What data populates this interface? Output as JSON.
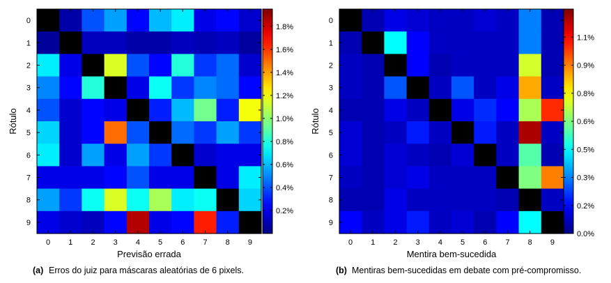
{
  "chart_data": [
    {
      "type": "heatmap",
      "panel_label": "(a)",
      "caption": "Erros do juiz para máscaras aleatórias de 6 pixels.",
      "xlabel": "Previsão errada",
      "ylabel": "Rótulo",
      "x_ticks": [
        "0",
        "1",
        "2",
        "3",
        "4",
        "5",
        "6",
        "7",
        "8",
        "9"
      ],
      "y_ticks": [
        "0",
        "1",
        "2",
        "3",
        "4",
        "5",
        "6",
        "7",
        "8",
        "9"
      ],
      "colorbar": {
        "min": 0.0,
        "max": 1.95,
        "unit": "%",
        "ticks": [
          0.2,
          0.4,
          0.6,
          0.8,
          1.0,
          1.2,
          1.4,
          1.6,
          1.8
        ],
        "tick_labels": [
          "0.2%",
          "0.4%",
          "0.6%",
          "0.8%",
          "1.0%",
          "1.2%",
          "1.4%",
          "1.6%",
          "1.8%"
        ]
      },
      "diagonal_masked": true,
      "values": [
        [
          0.0,
          0.08,
          0.4,
          0.55,
          0.25,
          0.6,
          0.7,
          0.2,
          0.25,
          0.15
        ],
        [
          0.05,
          0.0,
          0.12,
          0.12,
          0.08,
          0.08,
          0.12,
          0.1,
          0.12,
          0.06
        ],
        [
          0.7,
          0.2,
          0.0,
          1.15,
          0.4,
          0.25,
          0.8,
          0.35,
          0.45,
          0.15
        ],
        [
          0.5,
          0.25,
          0.8,
          0.0,
          0.2,
          0.75,
          0.35,
          0.5,
          0.45,
          0.25
        ],
        [
          0.4,
          0.15,
          0.25,
          0.2,
          0.0,
          0.3,
          0.6,
          0.95,
          0.3,
          1.2
        ],
        [
          0.65,
          0.15,
          0.25,
          1.5,
          0.4,
          0.0,
          0.45,
          0.35,
          0.55,
          0.35
        ],
        [
          0.7,
          0.15,
          0.55,
          0.2,
          0.55,
          0.35,
          0.0,
          0.15,
          0.2,
          0.2
        ],
        [
          0.2,
          0.2,
          0.2,
          0.25,
          0.4,
          0.2,
          0.2,
          0.0,
          0.2,
          0.7
        ],
        [
          0.55,
          0.35,
          0.75,
          1.15,
          0.75,
          1.05,
          0.7,
          0.75,
          0.0,
          0.65
        ],
        [
          0.2,
          0.15,
          0.12,
          0.25,
          1.85,
          0.2,
          0.25,
          1.65,
          0.3,
          0.0
        ]
      ]
    },
    {
      "type": "heatmap",
      "panel_label": "(b)",
      "caption": "Mentiras bem-sucedidas em debate com pré-compromisso.",
      "xlabel": "Mentira bem-sucedida",
      "ylabel": "Rótulo",
      "x_ticks": [
        "0",
        "1",
        "2",
        "3",
        "4",
        "5",
        "6",
        "7",
        "8",
        "9"
      ],
      "y_ticks": [
        "0",
        "1",
        "2",
        "3",
        "4",
        "5",
        "6",
        "7",
        "8",
        "9"
      ],
      "colorbar": {
        "min": 0.0,
        "max": 1.2,
        "unit": "%",
        "ticks": [
          0.0,
          0.15,
          0.3,
          0.45,
          0.6,
          0.75,
          0.9,
          1.05
        ],
        "tick_labels": [
          "0.0%",
          "0.2%",
          "0.3%",
          "0.5%",
          "0.6%",
          "0.8%",
          "0.9%",
          "1.1%"
        ]
      },
      "diagonal_masked": true,
      "values": [
        [
          0.0,
          0.06,
          0.12,
          0.1,
          0.08,
          0.08,
          0.1,
          0.08,
          0.3,
          0.06
        ],
        [
          0.06,
          0.0,
          0.45,
          0.15,
          0.08,
          0.08,
          0.08,
          0.08,
          0.3,
          0.06
        ],
        [
          0.08,
          0.06,
          0.0,
          0.15,
          0.06,
          0.08,
          0.08,
          0.08,
          0.7,
          0.06
        ],
        [
          0.08,
          0.06,
          0.25,
          0.0,
          0.08,
          0.25,
          0.08,
          0.12,
          0.85,
          0.08
        ],
        [
          0.06,
          0.06,
          0.12,
          0.08,
          0.0,
          0.12,
          0.2,
          0.15,
          0.65,
          1.0
        ],
        [
          0.1,
          0.06,
          0.08,
          0.18,
          0.08,
          0.0,
          0.18,
          0.08,
          1.15,
          0.08
        ],
        [
          0.1,
          0.06,
          0.1,
          0.08,
          0.06,
          0.1,
          0.0,
          0.08,
          0.55,
          0.06
        ],
        [
          0.08,
          0.06,
          0.1,
          0.12,
          0.08,
          0.08,
          0.08,
          0.0,
          0.6,
          0.9
        ],
        [
          0.06,
          0.06,
          0.12,
          0.08,
          0.08,
          0.08,
          0.08,
          0.06,
          0.0,
          0.08
        ],
        [
          0.15,
          0.08,
          0.12,
          0.18,
          0.08,
          0.1,
          0.06,
          0.15,
          0.45,
          0.0
        ]
      ]
    }
  ]
}
